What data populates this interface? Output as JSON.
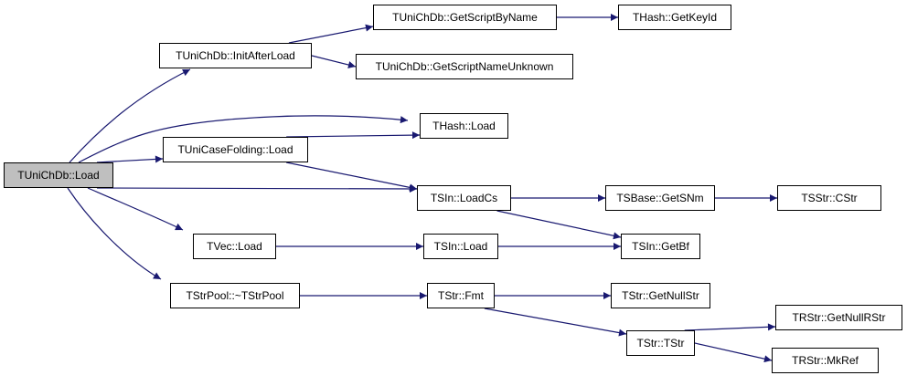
{
  "colors": {
    "edge": "#191970",
    "root_fill": "#bfbfbf",
    "node_fill": "#ffffff"
  },
  "nodes": [
    {
      "id": "root",
      "label": "TUniChDb::Load",
      "root": true
    },
    {
      "id": "initafterload",
      "label": "TUniChDb::InitAfterLoad"
    },
    {
      "id": "getscriptbyname",
      "label": "TUniChDb::GetScriptByName"
    },
    {
      "id": "getkeyid",
      "label": "THash::GetKeyId"
    },
    {
      "id": "getscriptnameunknown",
      "label": "TUniChDb::GetScriptNameUnknown"
    },
    {
      "id": "hashload",
      "label": "THash::Load"
    },
    {
      "id": "casefoldingload",
      "label": "TUniCaseFolding::Load"
    },
    {
      "id": "loadcs",
      "label": "TSIn::LoadCs"
    },
    {
      "id": "getsnm",
      "label": "TSBase::GetSNm"
    },
    {
      "id": "cstr",
      "label": "TSStr::CStr"
    },
    {
      "id": "vecload",
      "label": "TVec::Load"
    },
    {
      "id": "sinload",
      "label": "TSIn::Load"
    },
    {
      "id": "getbf",
      "label": "TSIn::GetBf"
    },
    {
      "id": "strpool",
      "label": "TStrPool::~TStrPool"
    },
    {
      "id": "fmt",
      "label": "TStr::Fmt"
    },
    {
      "id": "getnullstr",
      "label": "TStr::GetNullStr"
    },
    {
      "id": "tstr",
      "label": "TStr::TStr"
    },
    {
      "id": "getnullrstr",
      "label": "TRStr::GetNullRStr"
    },
    {
      "id": "mkref",
      "label": "TRStr::MkRef"
    }
  ],
  "edges": [
    [
      "root",
      "initafterload"
    ],
    [
      "root",
      "hashload"
    ],
    [
      "root",
      "casefoldingload"
    ],
    [
      "root",
      "loadcs"
    ],
    [
      "root",
      "vecload"
    ],
    [
      "root",
      "strpool"
    ],
    [
      "initafterload",
      "getscriptbyname"
    ],
    [
      "initafterload",
      "getscriptnameunknown"
    ],
    [
      "getscriptbyname",
      "getkeyid"
    ],
    [
      "casefoldingload",
      "hashload"
    ],
    [
      "casefoldingload",
      "loadcs"
    ],
    [
      "loadcs",
      "getsnm"
    ],
    [
      "loadcs",
      "getbf"
    ],
    [
      "getsnm",
      "cstr"
    ],
    [
      "vecload",
      "sinload"
    ],
    [
      "sinload",
      "getbf"
    ],
    [
      "strpool",
      "fmt"
    ],
    [
      "fmt",
      "getnullstr"
    ],
    [
      "fmt",
      "tstr"
    ],
    [
      "tstr",
      "getnullrstr"
    ],
    [
      "tstr",
      "mkref"
    ]
  ]
}
